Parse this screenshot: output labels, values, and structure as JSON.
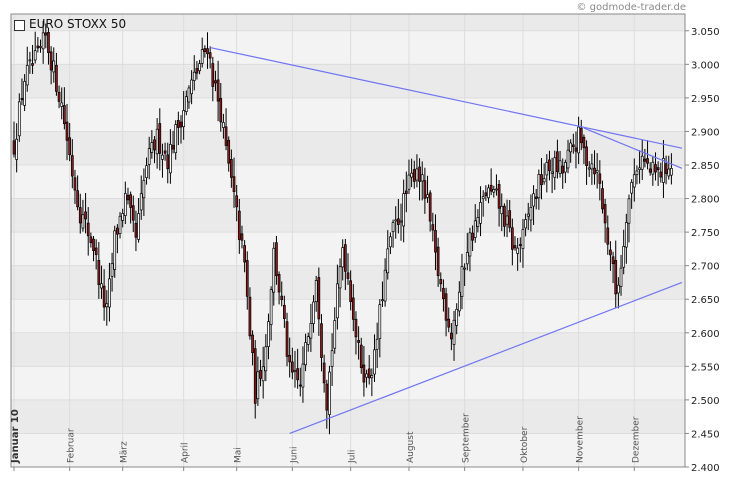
{
  "header": {
    "legend_title": "EURO STOXX 50",
    "source_credit": "© godmode-trader.de"
  },
  "colors": {
    "background": "#ffffff",
    "plot_band_light": "#f3f3f3",
    "plot_band_dark": "#eaeaea",
    "grid": "#dddddd",
    "candle_up": "#ffffff",
    "candle_down": "#8b1a1a",
    "wick": "#000000",
    "trendline": "#6f74f2"
  },
  "chart_data": {
    "type": "candlestick",
    "title": "EURO STOXX 50",
    "ylim": [
      2400,
      3075
    ],
    "ytick_values": [
      2400,
      2450,
      2500,
      2550,
      2600,
      2650,
      2700,
      2750,
      2800,
      2850,
      2900,
      2950,
      3000,
      3050
    ],
    "ytick_labels": [
      "2.400",
      "2.450",
      "2.500",
      "2.550",
      "2.600",
      "2.650",
      "2.700",
      "2.750",
      "2.800",
      "2.850",
      "2.900",
      "2.950",
      "3.000",
      "3.050"
    ],
    "xlim": [
      0,
      252
    ],
    "months": [
      {
        "label": "Januar 10",
        "start": 0,
        "highlight": true
      },
      {
        "label": "Februar",
        "start": 21
      },
      {
        "label": "März",
        "start": 41
      },
      {
        "label": "April",
        "start": 64
      },
      {
        "label": "Mai",
        "start": 84
      },
      {
        "label": "Juni",
        "start": 105
      },
      {
        "label": "Juli",
        "start": 127
      },
      {
        "label": "August",
        "start": 149
      },
      {
        "label": "September",
        "start": 170
      },
      {
        "label": "Oktober",
        "start": 192
      },
      {
        "label": "November",
        "start": 213
      },
      {
        "label": "Dezember",
        "start": 234
      }
    ],
    "grid": true,
    "anchors": [
      [
        0,
        2880
      ],
      [
        4,
        2980
      ],
      [
        9,
        3010
      ],
      [
        12,
        3040
      ],
      [
        15,
        2990
      ],
      [
        18,
        2940
      ],
      [
        22,
        2840
      ],
      [
        25,
        2780
      ],
      [
        30,
        2730
      ],
      [
        33,
        2660
      ],
      [
        35,
        2630
      ],
      [
        38,
        2740
      ],
      [
        42,
        2800
      ],
      [
        46,
        2740
      ],
      [
        50,
        2850
      ],
      [
        54,
        2890
      ],
      [
        58,
        2860
      ],
      [
        62,
        2910
      ],
      [
        66,
        2960
      ],
      [
        70,
        3000
      ],
      [
        73,
        3030
      ],
      [
        75,
        2980
      ],
      [
        78,
        2930
      ],
      [
        80,
        2870
      ],
      [
        83,
        2800
      ],
      [
        87,
        2700
      ],
      [
        89,
        2600
      ],
      [
        91,
        2510
      ],
      [
        95,
        2580
      ],
      [
        98,
        2720
      ],
      [
        101,
        2640
      ],
      [
        104,
        2540
      ],
      [
        108,
        2520
      ],
      [
        111,
        2600
      ],
      [
        114,
        2690
      ],
      [
        116,
        2580
      ],
      [
        118,
        2500
      ],
      [
        121,
        2620
      ],
      [
        124,
        2730
      ],
      [
        127,
        2660
      ],
      [
        130,
        2570
      ],
      [
        133,
        2530
      ],
      [
        136,
        2560
      ],
      [
        139,
        2660
      ],
      [
        142,
        2740
      ],
      [
        146,
        2780
      ],
      [
        149,
        2820
      ],
      [
        152,
        2850
      ],
      [
        156,
        2790
      ],
      [
        159,
        2710
      ],
      [
        162,
        2650
      ],
      [
        165,
        2600
      ],
      [
        168,
        2660
      ],
      [
        171,
        2730
      ],
      [
        175,
        2770
      ],
      [
        178,
        2810
      ],
      [
        182,
        2800
      ],
      [
        186,
        2760
      ],
      [
        189,
        2720
      ],
      [
        192,
        2740
      ],
      [
        195,
        2790
      ],
      [
        199,
        2830
      ],
      [
        203,
        2850
      ],
      [
        207,
        2840
      ],
      [
        210,
        2870
      ],
      [
        213,
        2890
      ],
      [
        216,
        2860
      ],
      [
        219,
        2850
      ],
      [
        221,
        2820
      ],
      [
        223,
        2760
      ],
      [
        225,
        2720
      ],
      [
        227,
        2660
      ],
      [
        229,
        2700
      ],
      [
        231,
        2780
      ],
      [
        233,
        2820
      ],
      [
        235,
        2850
      ],
      [
        237,
        2860
      ],
      [
        240,
        2840
      ],
      [
        243,
        2835
      ],
      [
        246,
        2850
      ],
      [
        248,
        2845
      ]
    ],
    "trendlines": [
      {
        "from": [
          74,
          3025
        ],
        "to": [
          252,
          2875
        ]
      },
      {
        "from": [
          215,
          2905
        ],
        "to": [
          252,
          2845
        ]
      },
      {
        "from": [
          104,
          2450
        ],
        "to": [
          252,
          2675
        ]
      }
    ]
  }
}
